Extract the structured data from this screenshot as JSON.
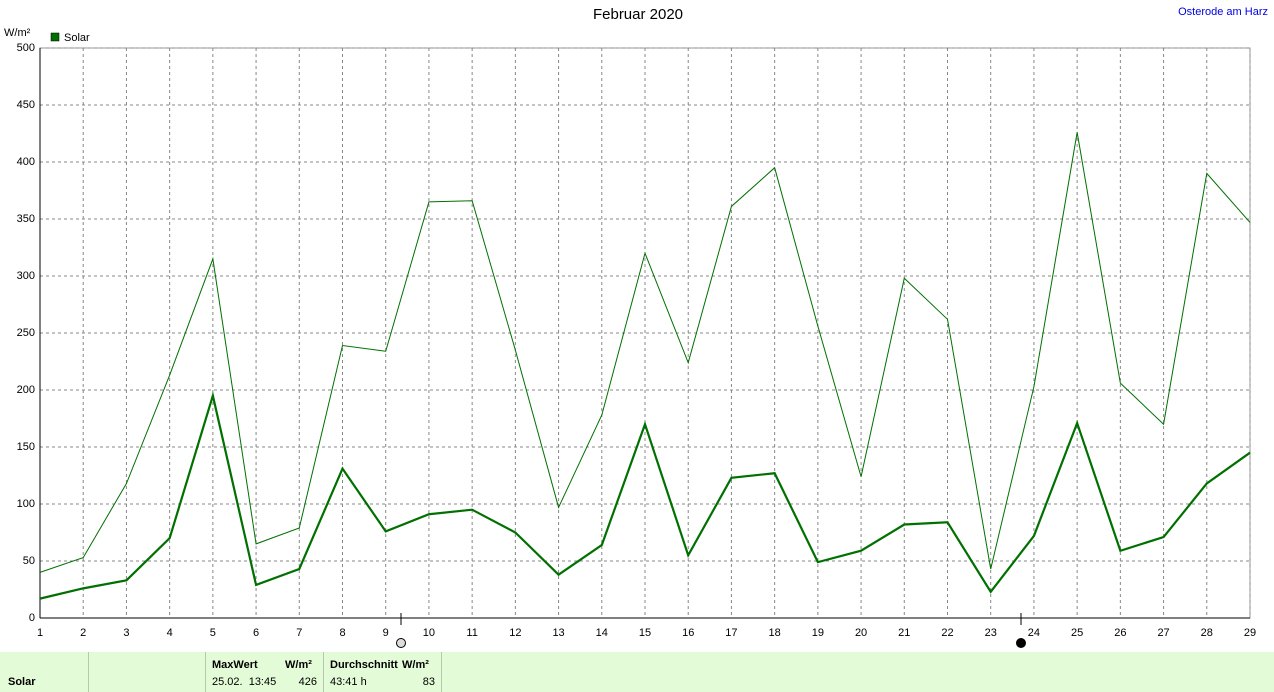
{
  "chart_data": {
    "type": "line",
    "title": "Februar 2020",
    "location": "Osterode am Harz",
    "y_label": "W/m²",
    "x": [
      1,
      2,
      3,
      4,
      5,
      6,
      7,
      8,
      9,
      10,
      11,
      12,
      13,
      14,
      15,
      16,
      17,
      18,
      19,
      20,
      21,
      22,
      23,
      24,
      25,
      26,
      27,
      28,
      29
    ],
    "xlim": [
      1,
      29
    ],
    "xticks": [
      1,
      2,
      3,
      4,
      5,
      6,
      7,
      8,
      9,
      10,
      11,
      12,
      13,
      14,
      15,
      16,
      17,
      18,
      19,
      20,
      21,
      22,
      23,
      24,
      25,
      26,
      27,
      28,
      29
    ],
    "ylim": [
      0,
      500
    ],
    "yticks": [
      0,
      50,
      100,
      150,
      200,
      250,
      300,
      350,
      400,
      450,
      500
    ],
    "grid": true,
    "series": [
      {
        "name": "Solar",
        "color": "#007000",
        "values": [
          17,
          26,
          33,
          70,
          195,
          29,
          43,
          131,
          76,
          91,
          95,
          75,
          38,
          64,
          170,
          55,
          123,
          127,
          49,
          59,
          82,
          84,
          23,
          72,
          171,
          59,
          71,
          118,
          145
        ]
      },
      {
        "color": "#007000",
        "values": [
          40,
          53,
          118,
          213,
          315,
          65,
          79,
          239,
          234,
          365,
          366,
          235,
          97,
          178,
          320,
          224,
          361,
          395,
          256,
          124,
          298,
          262,
          43,
          203,
          426,
          206,
          170,
          390,
          347
        ]
      }
    ]
  },
  "footer": {
    "label": "Solar",
    "max_title": "MaxWert",
    "max_unit": "W/m²",
    "max_time": "25.02.  13:45",
    "max_value": "426",
    "avg_title": "Durchschnitt",
    "avg_unit": "W/m²",
    "avg_time": "43:41 h",
    "avg_value": "83"
  }
}
